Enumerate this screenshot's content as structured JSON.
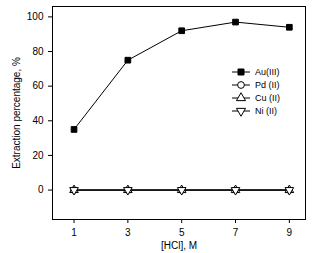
{
  "chart_data": {
    "type": "line",
    "x_label": "[HCl], M",
    "y_label": "Extraction percentage, %",
    "x": [
      1,
      3,
      5,
      7,
      9
    ],
    "xlim": [
      0.2,
      9.6
    ],
    "xticks": [
      1,
      3,
      5,
      7,
      9
    ],
    "ylim": [
      -17,
      106
    ],
    "yticks": [
      0,
      20,
      40,
      60,
      80,
      100
    ],
    "grid": false,
    "legend": "top-right",
    "series": [
      {
        "name": "Au(III)",
        "color": "#000000",
        "marker": "square-filled",
        "values": [
          35,
          75,
          92,
          97,
          94
        ]
      },
      {
        "name": "Pd (II)",
        "color": "#000000",
        "marker": "circle-open",
        "values": [
          0,
          0,
          0,
          0,
          0
        ]
      },
      {
        "name": "Cu (II)",
        "color": "#000000",
        "marker": "triangle-open",
        "values": [
          0,
          0,
          0,
          0,
          0
        ]
      },
      {
        "name": "Ni (II)",
        "color": "#000000",
        "marker": "triangledown-open",
        "values": [
          0,
          0,
          0,
          0,
          0
        ]
      }
    ]
  }
}
